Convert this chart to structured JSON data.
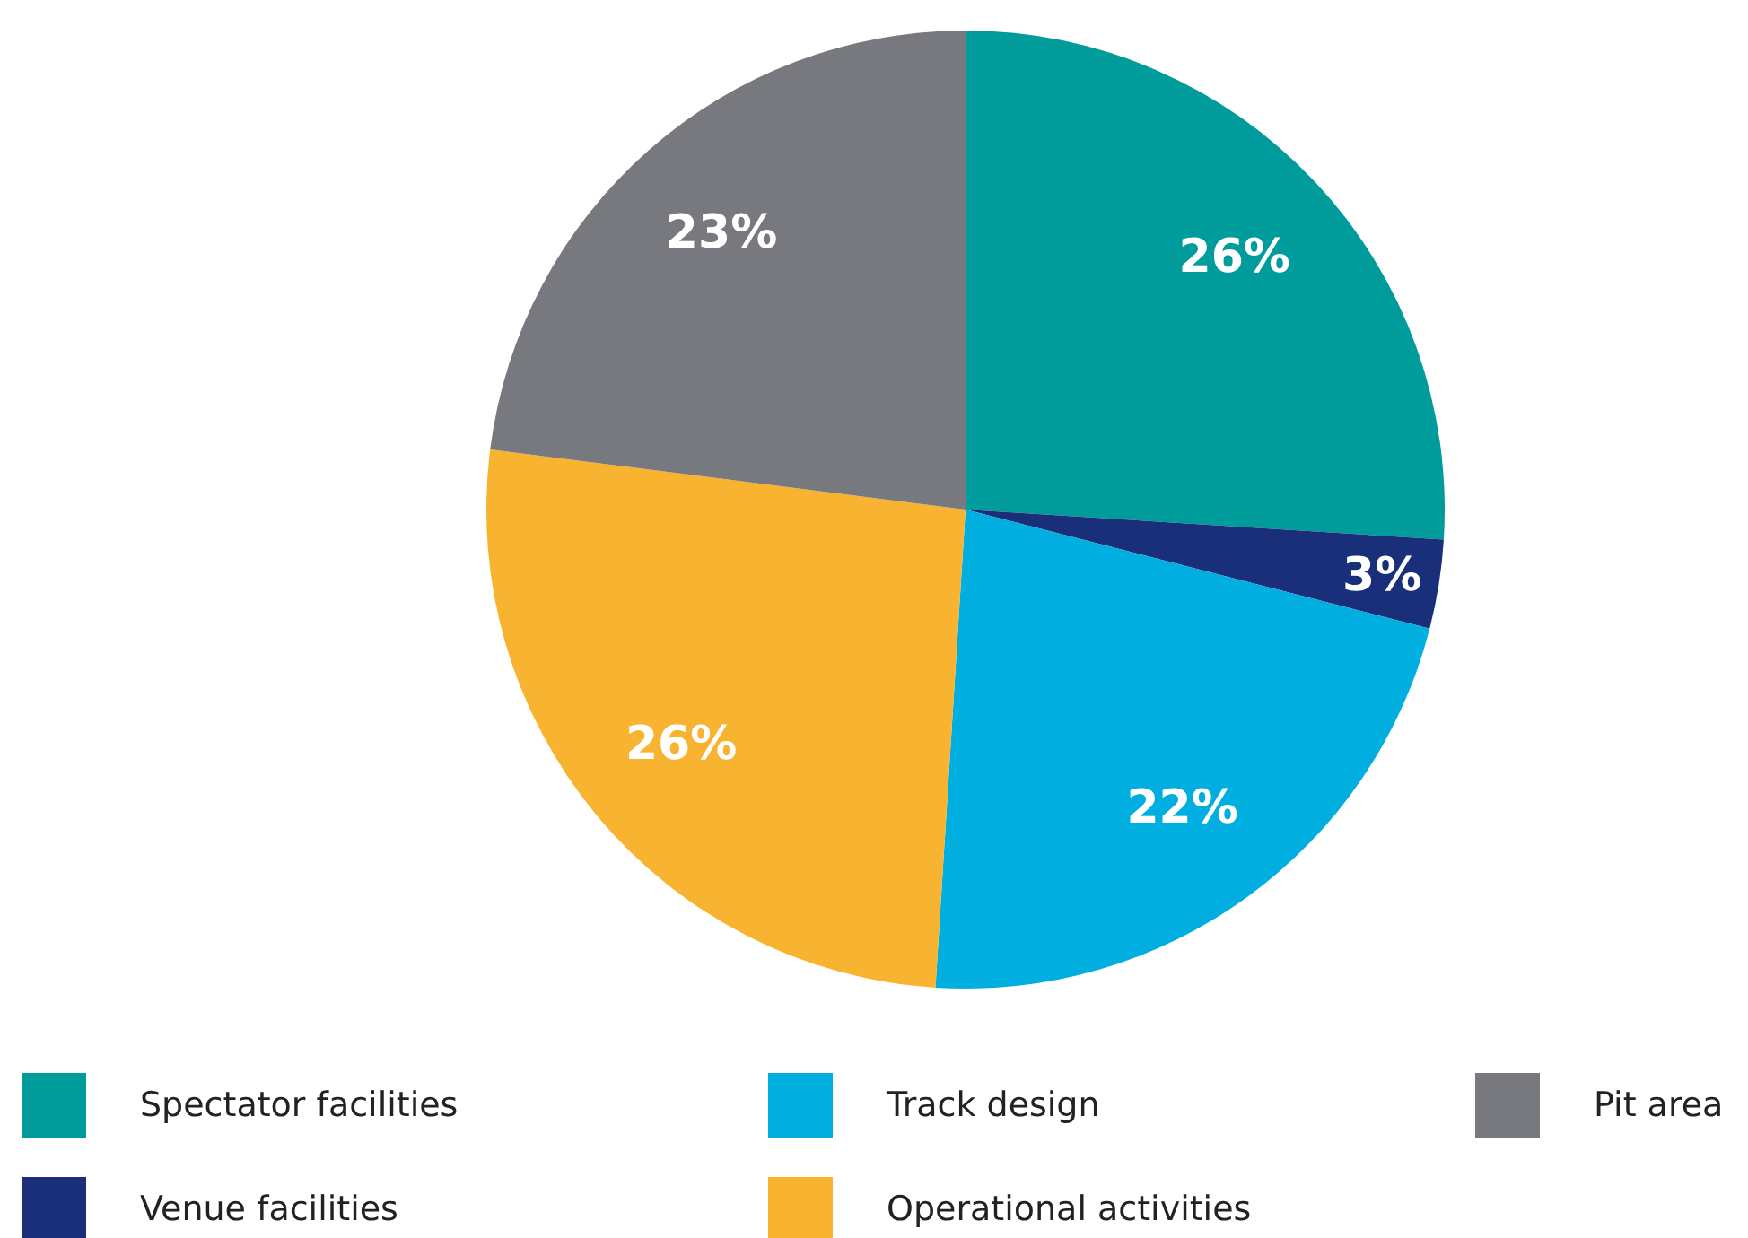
{
  "chart_data": {
    "type": "pie",
    "categories": [
      "Spectator facilities",
      "Venue facilities",
      "Track design",
      "Operational activities",
      "Pit area"
    ],
    "values": [
      26,
      3,
      22,
      26,
      23
    ],
    "colors": [
      "#009b9b",
      "#192f7a",
      "#00aee0",
      "#f8b431",
      "#77797e"
    ],
    "value_labels": [
      "26%",
      "3%",
      "22%",
      "26%",
      "23%"
    ],
    "legend": "bottom"
  }
}
